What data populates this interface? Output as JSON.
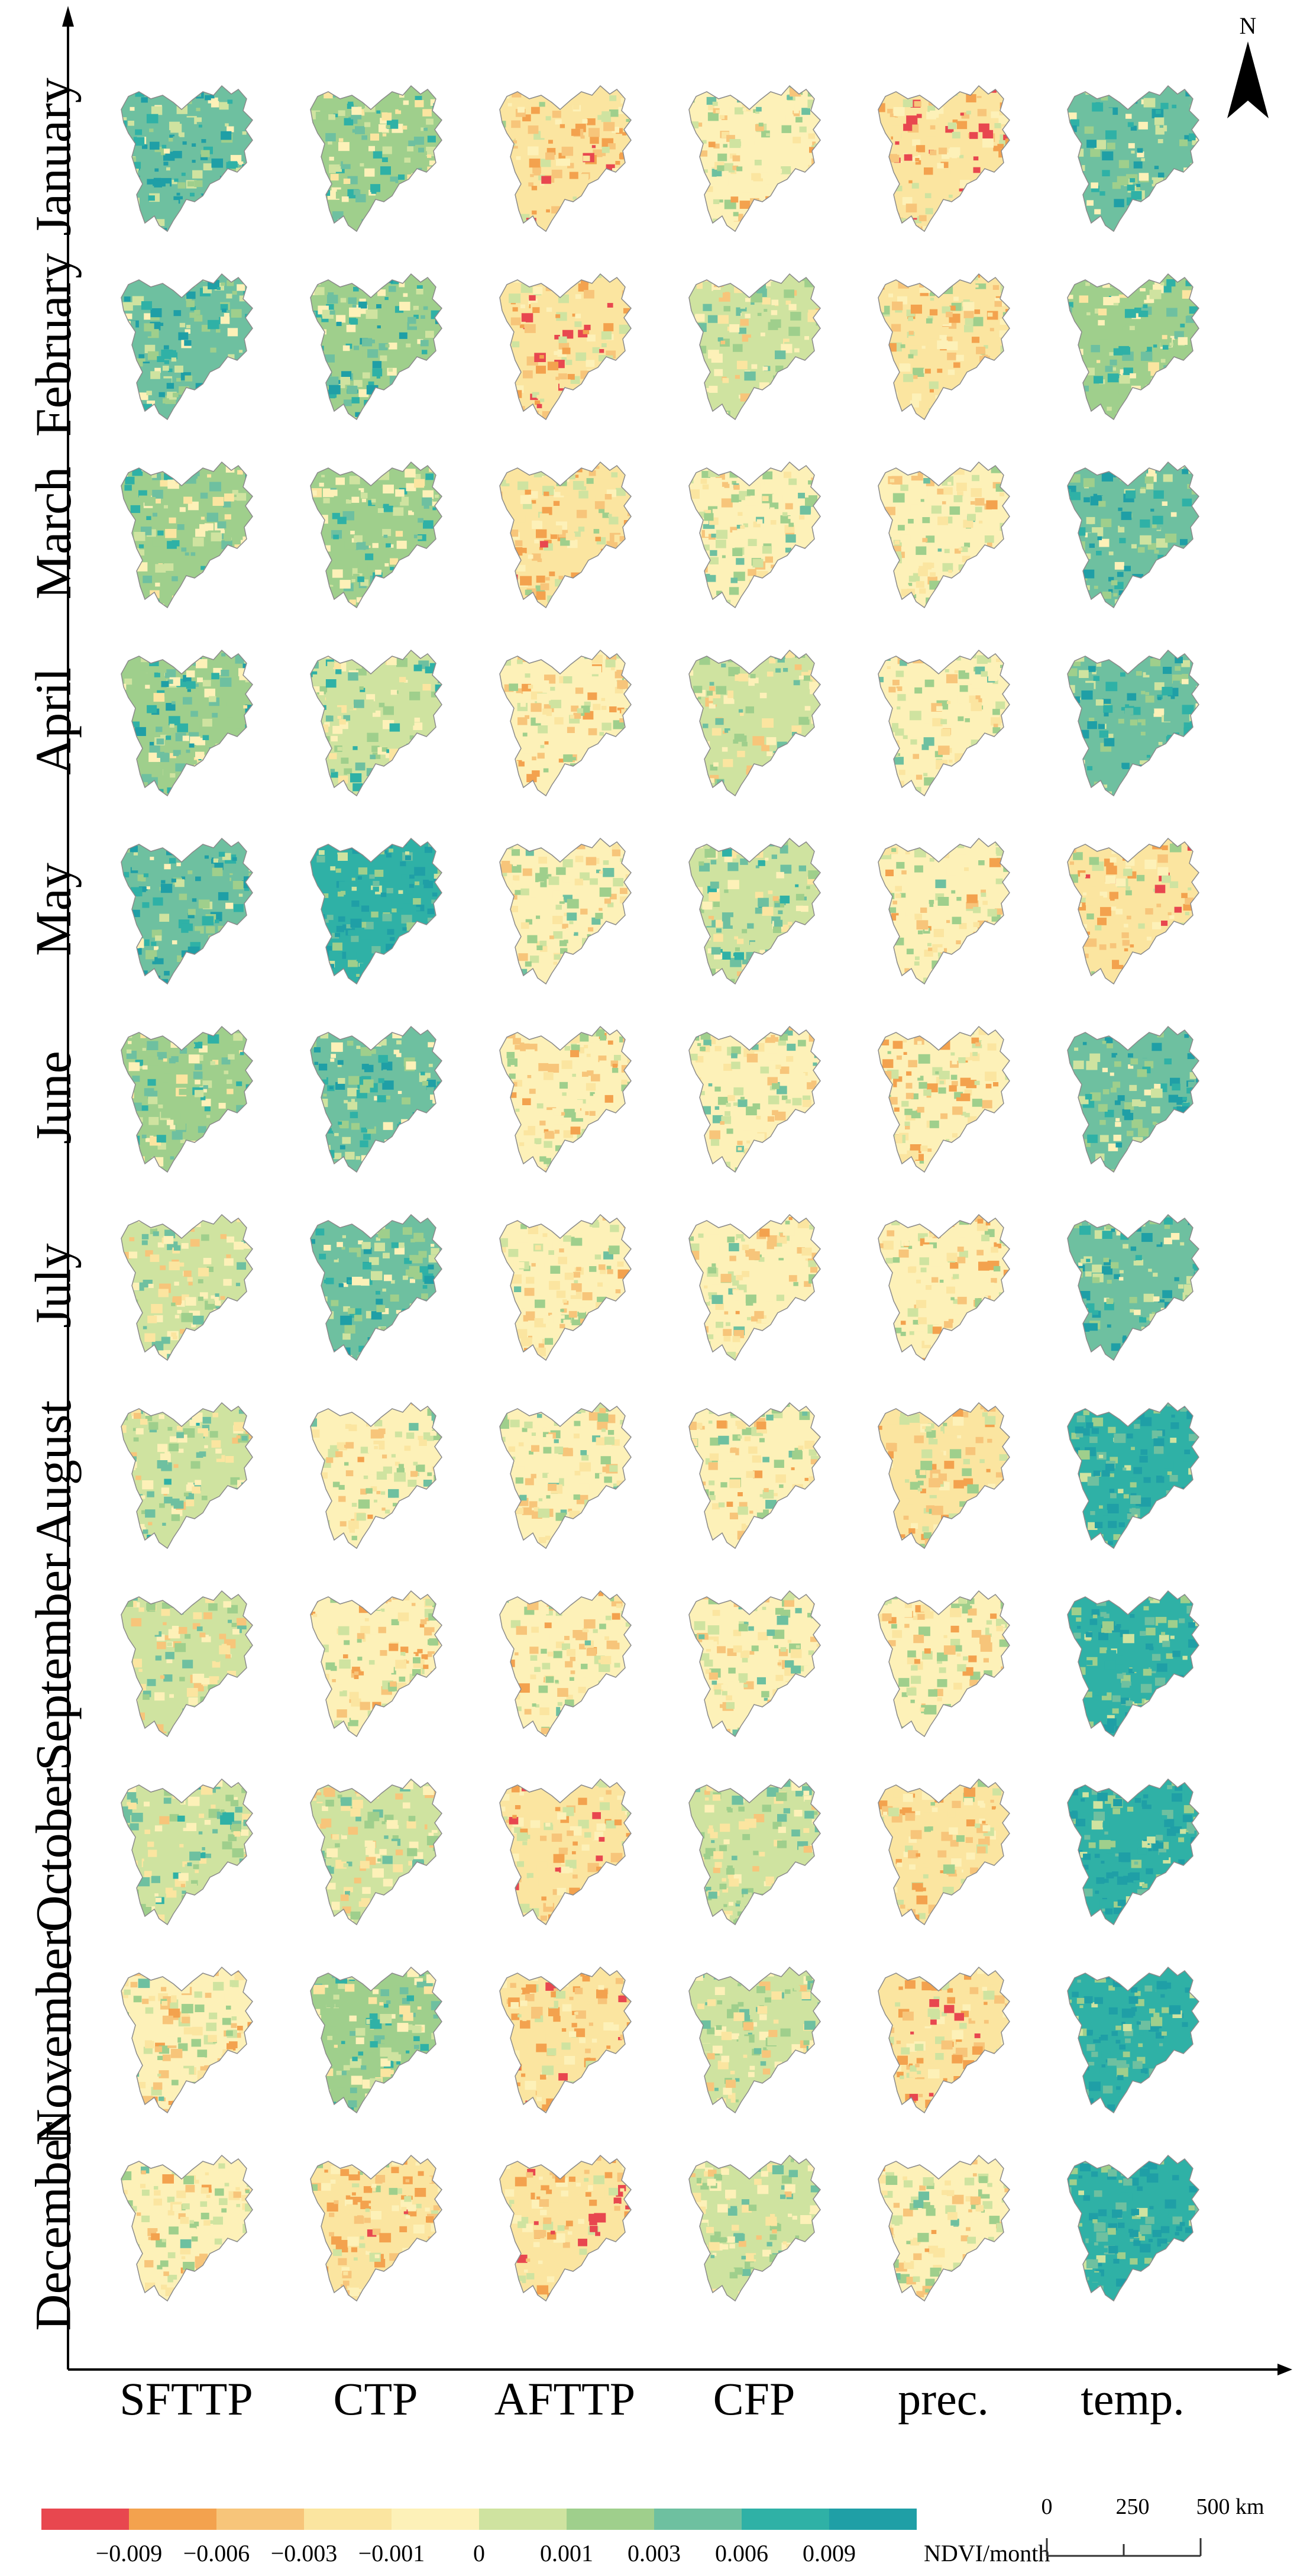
{
  "rows": [
    "January",
    "February",
    "March",
    "April",
    "May",
    "June",
    "July",
    "August",
    "September",
    "October",
    "November",
    "December"
  ],
  "columns": [
    "SFTTP",
    "CTP",
    "AFTTP",
    "CFP",
    "prec.",
    "temp."
  ],
  "legend": {
    "colors": [
      "#e8474f",
      "#f3a24e",
      "#f7c57a",
      "#fbe5a0",
      "#fdf1b8",
      "#cfe3a0",
      "#9fcf8c",
      "#6ec0a0",
      "#2fb1a6",
      "#1f9fa6"
    ],
    "ticks": [
      "−0.009",
      "−0.006",
      "−0.003",
      "−0.001",
      "0",
      "0.001",
      "0.003",
      "0.006",
      "0.009"
    ],
    "unit": "NDVI/month"
  },
  "scale_bar": {
    "labels": [
      "0",
      "250",
      "500 km"
    ]
  },
  "north_arrow": {
    "label": "N"
  },
  "cell_tint": [
    [
      0.72,
      0.6,
      0.35,
      0.45,
      0.3,
      0.7
    ],
    [
      0.7,
      0.68,
      0.32,
      0.5,
      0.38,
      0.62
    ],
    [
      0.62,
      0.6,
      0.35,
      0.48,
      0.45,
      0.74
    ],
    [
      0.66,
      0.58,
      0.4,
      0.5,
      0.48,
      0.76
    ],
    [
      0.74,
      0.8,
      0.48,
      0.55,
      0.45,
      0.35
    ],
    [
      0.6,
      0.7,
      0.42,
      0.48,
      0.4,
      0.72
    ],
    [
      0.5,
      0.7,
      0.45,
      0.45,
      0.42,
      0.74
    ],
    [
      0.55,
      0.45,
      0.48,
      0.45,
      0.38,
      0.82
    ],
    [
      0.5,
      0.42,
      0.45,
      0.48,
      0.42,
      0.82
    ],
    [
      0.55,
      0.5,
      0.32,
      0.52,
      0.38,
      0.84
    ],
    [
      0.45,
      0.6,
      0.3,
      0.5,
      0.32,
      0.86
    ],
    [
      0.45,
      0.35,
      0.3,
      0.52,
      0.45,
      0.82
    ]
  ]
}
